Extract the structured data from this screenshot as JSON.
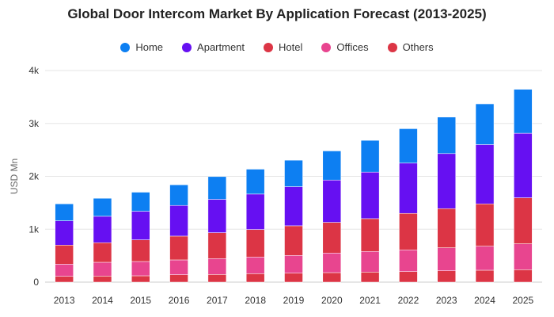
{
  "chart_data": {
    "type": "bar",
    "stacked": true,
    "title": "Global Door Intercom Market By Application Forecast (2013-2025)",
    "xlabel": "",
    "ylabel": "USD Mn",
    "ylim": [
      0,
      4000
    ],
    "yticks": [
      0,
      1000,
      2000,
      3000,
      4000
    ],
    "ytick_labels": [
      "0",
      "1k",
      "2k",
      "3k",
      "4k"
    ],
    "grid": true,
    "legend_position": "top-center",
    "categories": [
      "2013",
      "2014",
      "2015",
      "2016",
      "2017",
      "2018",
      "2019",
      "2020",
      "2021",
      "2022",
      "2023",
      "2024",
      "2025"
    ],
    "series": [
      {
        "name": "Others",
        "color": "#dc3545",
        "values": [
          110,
          115,
          120,
          140,
          145,
          160,
          170,
          180,
          190,
          200,
          215,
          225,
          235
        ]
      },
      {
        "name": "Offices",
        "color": "#e8458f",
        "values": [
          230,
          260,
          270,
          280,
          300,
          315,
          335,
          370,
          390,
          410,
          435,
          455,
          490
        ]
      },
      {
        "name": "Hotel",
        "color": "#dc3545",
        "values": [
          360,
          370,
          410,
          450,
          490,
          520,
          560,
          580,
          620,
          690,
          740,
          800,
          870
        ]
      },
      {
        "name": "Apartment",
        "color": "#6610f2",
        "values": [
          460,
          500,
          540,
          580,
          630,
          670,
          740,
          800,
          880,
          950,
          1040,
          1120,
          1220
        ]
      },
      {
        "name": "Home",
        "color": "#0d7ff2",
        "values": [
          320,
          340,
          360,
          390,
          430,
          470,
          500,
          550,
          600,
          650,
          690,
          770,
          830
        ]
      }
    ]
  },
  "legend": [
    {
      "name": "Home",
      "color": "#0d7ff2"
    },
    {
      "name": "Apartment",
      "color": "#6610f2"
    },
    {
      "name": "Hotel",
      "color": "#dc3545"
    },
    {
      "name": "Offices",
      "color": "#e8458f"
    },
    {
      "name": "Others",
      "color": "#dc3545"
    }
  ]
}
